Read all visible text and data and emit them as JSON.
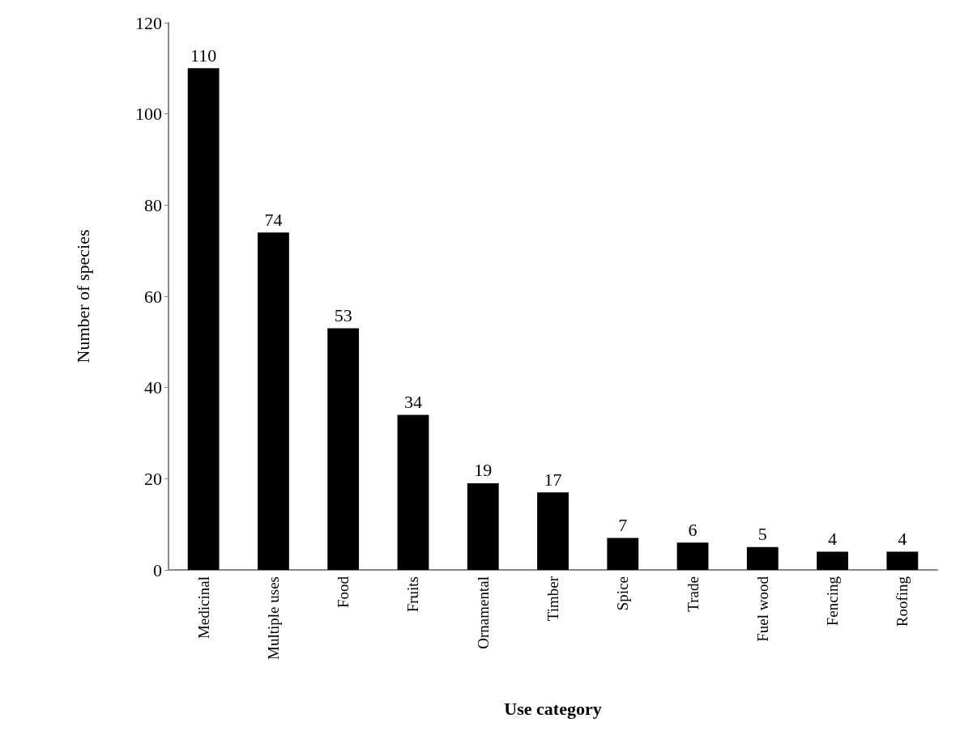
{
  "chart_data": {
    "type": "bar",
    "xlabel": "Use category",
    "ylabel": "Number of species",
    "categories": [
      "Medicinal",
      "Multiple uses",
      "Food",
      "Fruits",
      "Ornamental",
      "Timber",
      "Spice",
      "Trade",
      "Fuel wood",
      "Fencing",
      "Roofing"
    ],
    "values": [
      110,
      74,
      53,
      34,
      19,
      17,
      7,
      6,
      5,
      4,
      4
    ],
    "color": "#000000",
    "ylim": [
      0,
      120
    ],
    "yticks": [
      0,
      20,
      40,
      60,
      80,
      100,
      120
    ],
    "data_labels": true
  }
}
